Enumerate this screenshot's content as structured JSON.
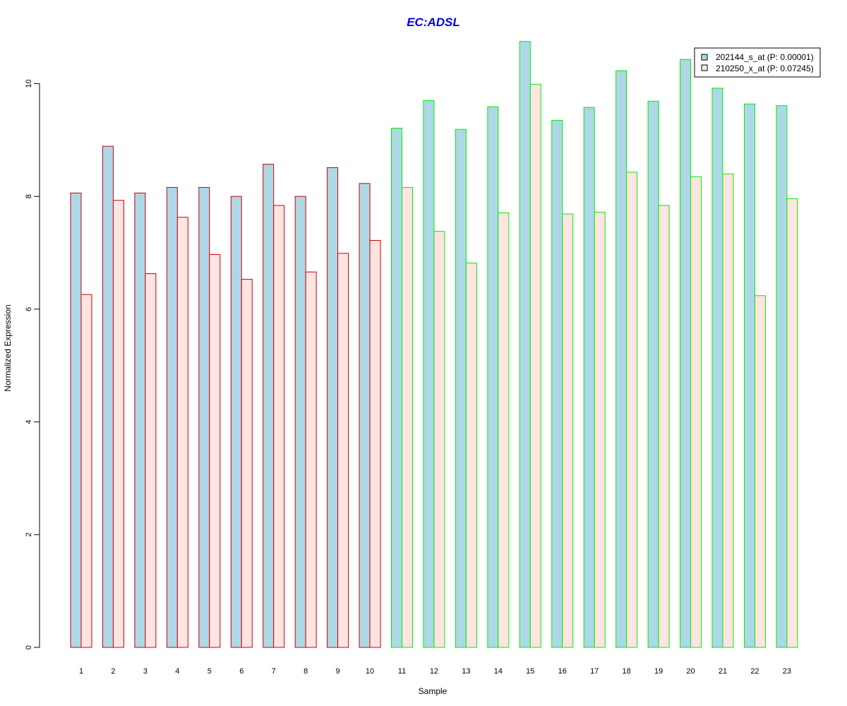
{
  "chart_data": {
    "type": "bar",
    "title": "EC:ADSL",
    "xlabel": "Sample",
    "ylabel": "Normalized Expression",
    "ylim": [
      0,
      10.8
    ],
    "yticks": [
      0,
      2,
      4,
      6,
      8,
      10
    ],
    "categories": [
      "1",
      "2",
      "3",
      "4",
      "5",
      "6",
      "7",
      "8",
      "9",
      "10",
      "11",
      "12",
      "13",
      "14",
      "15",
      "16",
      "17",
      "18",
      "19",
      "20",
      "21",
      "22",
      "23"
    ],
    "series": [
      {
        "name": "202144_s_at (P: 0.00001)",
        "fill": "#add8e6",
        "values": [
          8.06,
          8.89,
          8.06,
          8.16,
          8.16,
          8.0,
          8.57,
          8.0,
          8.51,
          8.23,
          9.21,
          9.7,
          9.19,
          9.59,
          10.75,
          9.35,
          9.58,
          10.23,
          9.69,
          10.43,
          9.92,
          9.64,
          9.61
        ]
      },
      {
        "name": "210250_x_at (P: 0.07245)",
        "fill": "#ffe4e1",
        "values": [
          6.26,
          7.93,
          6.63,
          7.63,
          6.97,
          6.53,
          7.84,
          6.66,
          6.99,
          7.22,
          8.16,
          7.38,
          6.82,
          7.71,
          9.99,
          7.69,
          7.72,
          8.43,
          7.84,
          8.35,
          8.4,
          6.24,
          7.96
        ]
      }
    ],
    "group_colors": [
      "#cc0000",
      "#cc0000",
      "#cc0000",
      "#cc0000",
      "#cc0000",
      "#cc0000",
      "#cc0000",
      "#cc0000",
      "#cc0000",
      "#cc0000",
      "#00ee00",
      "#00ee00",
      "#00ee00",
      "#00ee00",
      "#00ee00",
      "#00ee00",
      "#00ee00",
      "#00ee00",
      "#00ee00",
      "#00ee00",
      "#00ee00",
      "#00ee00",
      "#00ee00"
    ],
    "legend_position": "top-right",
    "grid": false
  }
}
